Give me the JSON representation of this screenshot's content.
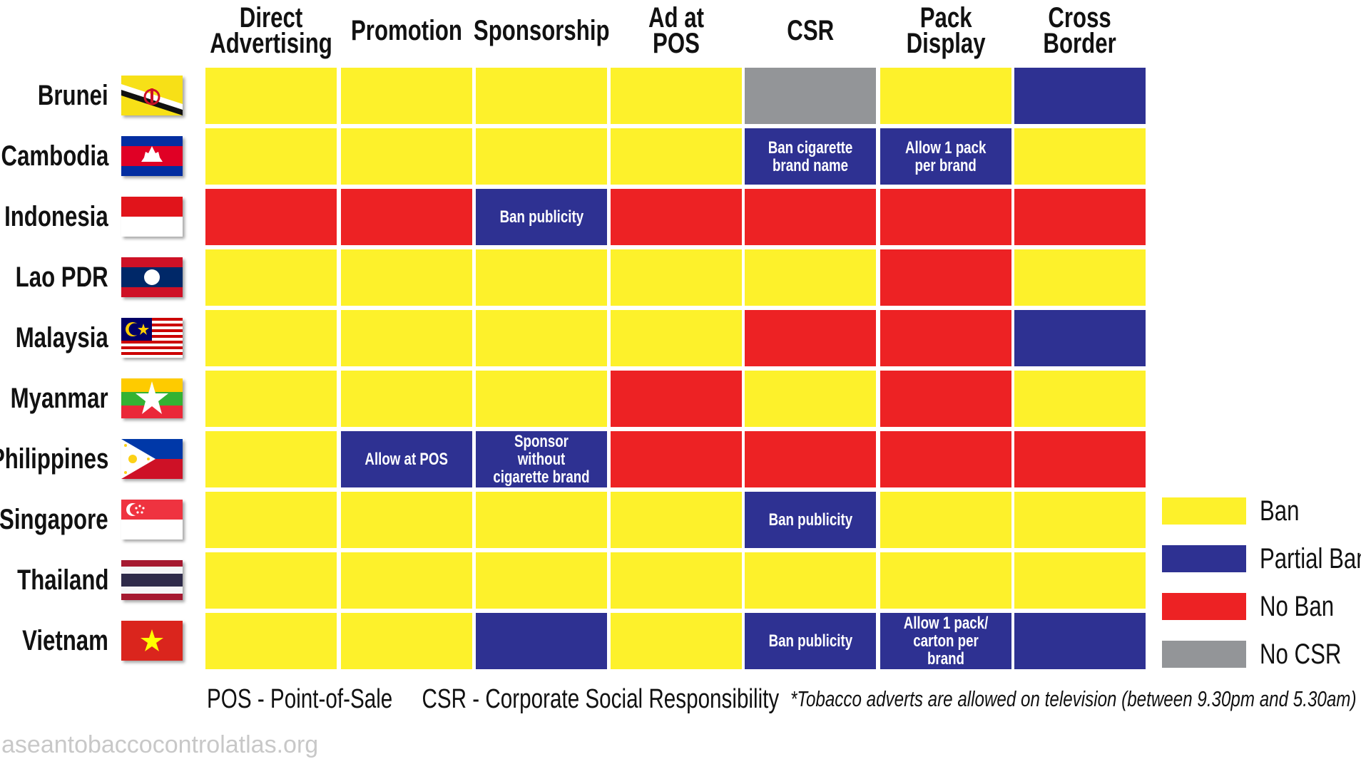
{
  "chart_data": {
    "type": "table",
    "columns": [
      {
        "key": "direct_advertising",
        "label": "Direct\nAdvertising"
      },
      {
        "key": "promotion",
        "label": "Promotion"
      },
      {
        "key": "sponsorship",
        "label": "Sponsorship"
      },
      {
        "key": "ad_at_pos",
        "label": "Ad at POS"
      },
      {
        "key": "csr",
        "label": "CSR"
      },
      {
        "key": "pack_display",
        "label": "Pack\nDisplay"
      },
      {
        "key": "cross_border",
        "label": "Cross\nBorder"
      }
    ],
    "rows": [
      {
        "country": "Brunei",
        "flag": "brunei-flag-icon",
        "cells": [
          {
            "status": "ban"
          },
          {
            "status": "ban"
          },
          {
            "status": "ban"
          },
          {
            "status": "ban"
          },
          {
            "status": "no_csr"
          },
          {
            "status": "ban"
          },
          {
            "status": "partial"
          }
        ]
      },
      {
        "country": "Cambodia",
        "flag": "cambodia-flag-icon",
        "cells": [
          {
            "status": "ban"
          },
          {
            "status": "ban"
          },
          {
            "status": "ban"
          },
          {
            "status": "ban"
          },
          {
            "status": "partial",
            "note": "Ban cigarette\nbrand name"
          },
          {
            "status": "partial",
            "note": "Allow 1 pack\nper brand"
          },
          {
            "status": "ban"
          }
        ]
      },
      {
        "country": "Indonesia",
        "flag": "indonesia-flag-icon",
        "cells": [
          {
            "status": "no_ban"
          },
          {
            "status": "no_ban"
          },
          {
            "status": "partial",
            "note": "Ban publicity"
          },
          {
            "status": "no_ban"
          },
          {
            "status": "no_ban"
          },
          {
            "status": "no_ban"
          },
          {
            "status": "no_ban"
          }
        ]
      },
      {
        "country": "Lao PDR",
        "flag": "laos-flag-icon",
        "cells": [
          {
            "status": "ban"
          },
          {
            "status": "ban"
          },
          {
            "status": "ban"
          },
          {
            "status": "ban"
          },
          {
            "status": "ban"
          },
          {
            "status": "no_ban"
          },
          {
            "status": "ban"
          }
        ]
      },
      {
        "country": "Malaysia",
        "flag": "malaysia-flag-icon",
        "cells": [
          {
            "status": "ban"
          },
          {
            "status": "ban"
          },
          {
            "status": "ban"
          },
          {
            "status": "ban"
          },
          {
            "status": "no_ban"
          },
          {
            "status": "no_ban"
          },
          {
            "status": "partial"
          }
        ]
      },
      {
        "country": "Myanmar",
        "flag": "myanmar-flag-icon",
        "cells": [
          {
            "status": "ban"
          },
          {
            "status": "ban"
          },
          {
            "status": "ban"
          },
          {
            "status": "no_ban"
          },
          {
            "status": "ban"
          },
          {
            "status": "no_ban"
          },
          {
            "status": "ban"
          }
        ]
      },
      {
        "country": "Philippines",
        "flag": "philippines-flag-icon",
        "cells": [
          {
            "status": "ban"
          },
          {
            "status": "partial",
            "note": "Allow at POS"
          },
          {
            "status": "partial",
            "note": "Sponsor without\ncigarette brand"
          },
          {
            "status": "no_ban"
          },
          {
            "status": "no_ban"
          },
          {
            "status": "no_ban"
          },
          {
            "status": "no_ban"
          }
        ]
      },
      {
        "country": "Singapore",
        "flag": "singapore-flag-icon",
        "cells": [
          {
            "status": "ban"
          },
          {
            "status": "ban"
          },
          {
            "status": "ban"
          },
          {
            "status": "ban"
          },
          {
            "status": "partial",
            "note": "Ban publicity"
          },
          {
            "status": "ban"
          },
          {
            "status": "ban"
          }
        ]
      },
      {
        "country": "Thailand",
        "flag": "thailand-flag-icon",
        "cells": [
          {
            "status": "ban"
          },
          {
            "status": "ban"
          },
          {
            "status": "ban"
          },
          {
            "status": "ban"
          },
          {
            "status": "ban"
          },
          {
            "status": "ban"
          },
          {
            "status": "ban"
          }
        ]
      },
      {
        "country": "Vietnam",
        "flag": "vietnam-flag-icon",
        "cells": [
          {
            "status": "ban"
          },
          {
            "status": "ban"
          },
          {
            "status": "partial"
          },
          {
            "status": "ban"
          },
          {
            "status": "partial",
            "note": "Ban publicity"
          },
          {
            "status": "partial",
            "note": "Allow 1 pack/\ncarton per brand"
          },
          {
            "status": "partial"
          }
        ]
      }
    ],
    "legend": [
      {
        "status": "ban",
        "label": "Ban",
        "color": "#FDF12B"
      },
      {
        "status": "partial",
        "label": "Partial Ban",
        "color": "#2E3192"
      },
      {
        "status": "no_ban",
        "label": "No Ban",
        "color": "#ED2224"
      },
      {
        "status": "no_csr",
        "label": "No CSR",
        "color": "#939598"
      }
    ],
    "legend_position": "right"
  },
  "footnotes": {
    "abbreviations": "POS - Point-of-Sale     CSR - Corporate Social Responsibility",
    "tv_note": "*Tobacco adverts are allowed on television (between 9.30pm and 5.30am)"
  },
  "watermark": "aseantobaccocontrolatlas.org"
}
